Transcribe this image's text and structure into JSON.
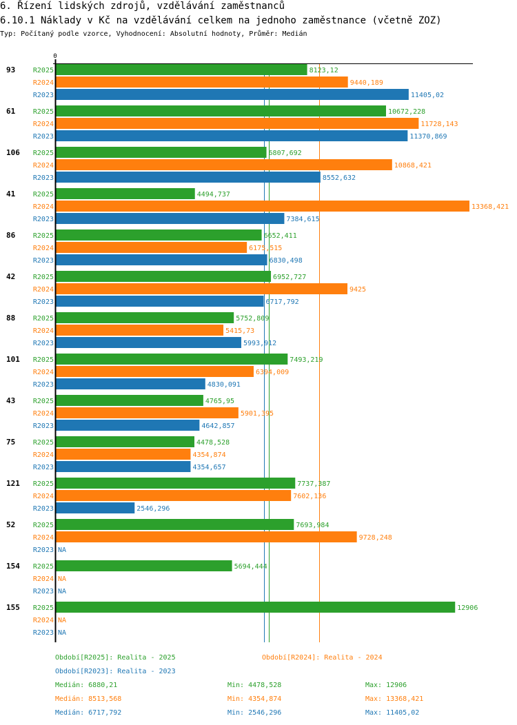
{
  "header": {
    "title": "6. Řízení lidských zdrojů, vzdělávání zaměstnanců",
    "subtitle": "6.10.1 Náklady v Kč na vzdělávání celkem na jednoho zaměstnance (včetně ZOZ)",
    "description": "Typ: Počítaný podle vzorce, Vyhodnocení: Absolutní hodnoty, Průměr: Medián"
  },
  "colors": {
    "R2025": "#2ca02c",
    "R2024": "#ff7f0e",
    "R2023": "#1f77b4",
    "axis": "#000000"
  },
  "chart_data": {
    "type": "bar",
    "orientation": "horizontal",
    "title": "6.10.1 Náklady v Kč na vzdělávání celkem na jednoho zaměstnance (včetně ZOZ)",
    "xlabel": "",
    "ylabel": "",
    "x_tick_labels": [
      "0"
    ],
    "xlim": [
      0,
      13368.421
    ],
    "grid": false,
    "na_label": "NA",
    "categories": [
      "93",
      "61",
      "106",
      "41",
      "86",
      "42",
      "88",
      "101",
      "43",
      "75",
      "121",
      "52",
      "154",
      "155"
    ],
    "series": [
      {
        "name": "R2025",
        "values": [
          8123.12,
          10672.228,
          6807.692,
          4494.737,
          6652.411,
          6952.727,
          5752.809,
          7493.219,
          4765.95,
          4478.528,
          7737.387,
          7693.984,
          5694.444,
          12906
        ],
        "labels": [
          "8123,12",
          "10672,228",
          "6807,692",
          "4494,737",
          "6652,411",
          "6952,727",
          "5752,809",
          "7493,219",
          "4765,95",
          "4478,528",
          "7737,387",
          "7693,984",
          "5694,444",
          "12906"
        ]
      },
      {
        "name": "R2024",
        "values": [
          9440.189,
          11728.143,
          10868.421,
          13368.421,
          6175.515,
          9425,
          5415.73,
          6394.009,
          5901.395,
          4354.874,
          7602.136,
          9728.248,
          null,
          null
        ],
        "labels": [
          "9440,189",
          "11728,143",
          "10868,421",
          "13368,421",
          "6175,515",
          "9425",
          "5415,73",
          "6394,009",
          "5901,395",
          "4354,874",
          "7602,136",
          "9728,248",
          "NA",
          "NA"
        ]
      },
      {
        "name": "R2023",
        "values": [
          11405.02,
          11370.869,
          8552.632,
          7384.615,
          6830.498,
          6717.792,
          5993.912,
          4830.091,
          4642.857,
          4354.657,
          2546.296,
          null,
          null,
          null
        ],
        "labels": [
          "11405,02",
          "11370,869",
          "8552,632",
          "7384,615",
          "6830,498",
          "6717,792",
          "5993,912",
          "4830,091",
          "4642,857",
          "4354,657",
          "2546,296",
          "NA",
          "NA",
          "NA"
        ]
      }
    ],
    "reference_lines": [
      {
        "series": "R2025",
        "type": "median",
        "value": 6880.21
      },
      {
        "series": "R2024",
        "type": "median",
        "value": 8513.568
      },
      {
        "series": "R2023",
        "type": "median",
        "value": 6717.792
      }
    ]
  },
  "legend": {
    "periods": [
      {
        "series": "R2025",
        "text": "Období[R2025]: Realita - 2025"
      },
      {
        "series": "R2024",
        "text": "Období[R2024]: Realita - 2024"
      },
      {
        "series": "R2023",
        "text": "Období[R2023]: Realita - 2023"
      }
    ],
    "stats": [
      {
        "series": "R2025",
        "median": "Medián: 6880,21",
        "min": "Min: 4478,528",
        "max": "Max: 12906"
      },
      {
        "series": "R2024",
        "median": "Medián: 8513,568",
        "min": "Min: 4354,874",
        "max": "Max: 13368,421"
      },
      {
        "series": "R2023",
        "median": "Medián: 6717,792",
        "min": "Min: 2546,296",
        "max": "Max: 11405,02"
      }
    ]
  }
}
